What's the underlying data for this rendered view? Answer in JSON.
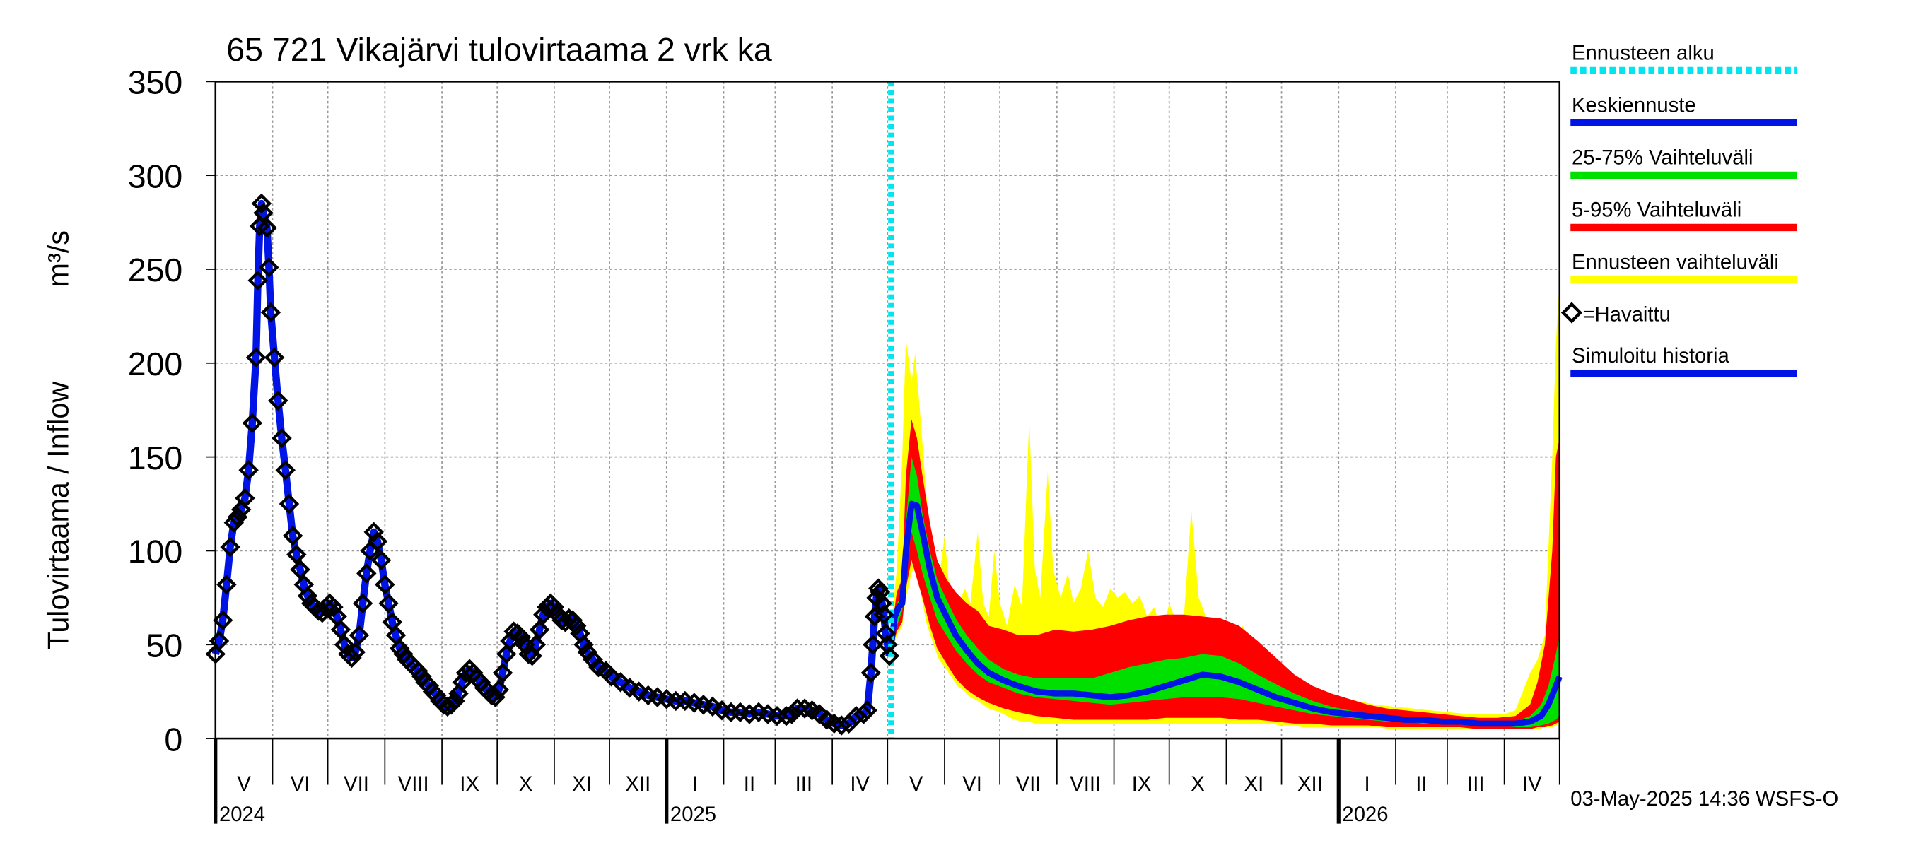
{
  "chart_data": {
    "type": "line",
    "title": "65 721 Vikajärvi tulovirtaama 2 vrk ka",
    "ylabel_main": "Tulovirtaama / Inflow",
    "ylabel_unit": "m³/s",
    "ylim": [
      0,
      350
    ],
    "yticks": [
      "0",
      "50",
      "100",
      "150",
      "200",
      "250",
      "300",
      "350"
    ],
    "ytick_values": [
      0,
      50,
      100,
      150,
      200,
      250,
      300,
      350
    ],
    "month_labels": [
      "V",
      "VI",
      "VII",
      "VIII",
      "IX",
      "X",
      "XI",
      "XII",
      "I",
      "II",
      "III",
      "IV",
      "V",
      "VI",
      "VII",
      "VIII",
      "IX",
      "X",
      "XI",
      "XII",
      "I",
      "II",
      "III",
      "IV"
    ],
    "year_labels": [
      "2024",
      "2025",
      "2026"
    ],
    "x_start_day": 0,
    "x_end_day": 730,
    "forecast_start_day": 367,
    "legend": [
      {
        "label": "Ennusteen alku",
        "color": "#00e5ee",
        "style": "dotted"
      },
      {
        "label": "Keskiennuste",
        "color": "#0014e6",
        "style": "solid"
      },
      {
        "label": "25-75% Vaihteluväli",
        "color": "#00e000",
        "style": "solid"
      },
      {
        "label": "5-95% Vaihteluväli",
        "color": "#ff0000",
        "style": "solid"
      },
      {
        "label": "Ennusteen vaihteluväli",
        "color": "#ffff00",
        "style": "solid"
      },
      {
        "label": "=Havaittu",
        "color": "#000000",
        "style": "marker"
      },
      {
        "label": "Simuloitu historia",
        "color": "#0014e6",
        "style": "solid"
      }
    ],
    "observed": [
      [
        0,
        45
      ],
      [
        2,
        52
      ],
      [
        4,
        63
      ],
      [
        6,
        82
      ],
      [
        8,
        102
      ],
      [
        10,
        115
      ],
      [
        12,
        118
      ],
      [
        14,
        122
      ],
      [
        16,
        128
      ],
      [
        18,
        143
      ],
      [
        20,
        168
      ],
      [
        22,
        203
      ],
      [
        23,
        244
      ],
      [
        24,
        273
      ],
      [
        25,
        285
      ],
      [
        26,
        280
      ],
      [
        28,
        272
      ],
      [
        29,
        251
      ],
      [
        30,
        227
      ],
      [
        32,
        203
      ],
      [
        34,
        180
      ],
      [
        36,
        160
      ],
      [
        38,
        143
      ],
      [
        40,
        125
      ],
      [
        42,
        108
      ],
      [
        44,
        98
      ],
      [
        46,
        90
      ],
      [
        48,
        82
      ],
      [
        50,
        76
      ],
      [
        52,
        72
      ],
      [
        54,
        70
      ],
      [
        56,
        68
      ],
      [
        58,
        67
      ],
      [
        60,
        70
      ],
      [
        62,
        72
      ],
      [
        64,
        70
      ],
      [
        66,
        65
      ],
      [
        68,
        58
      ],
      [
        70,
        50
      ],
      [
        72,
        45
      ],
      [
        74,
        43
      ],
      [
        76,
        46
      ],
      [
        78,
        55
      ],
      [
        80,
        72
      ],
      [
        82,
        88
      ],
      [
        84,
        100
      ],
      [
        86,
        110
      ],
      [
        88,
        105
      ],
      [
        90,
        95
      ],
      [
        92,
        82
      ],
      [
        94,
        72
      ],
      [
        96,
        62
      ],
      [
        98,
        55
      ],
      [
        100,
        48
      ],
      [
        102,
        45
      ],
      [
        104,
        42
      ],
      [
        106,
        40
      ],
      [
        108,
        38
      ],
      [
        110,
        36
      ],
      [
        112,
        33
      ],
      [
        114,
        30
      ],
      [
        116,
        28
      ],
      [
        118,
        25
      ],
      [
        120,
        23
      ],
      [
        122,
        20
      ],
      [
        124,
        18
      ],
      [
        126,
        17
      ],
      [
        128,
        18
      ],
      [
        130,
        20
      ],
      [
        132,
        24
      ],
      [
        134,
        30
      ],
      [
        136,
        35
      ],
      [
        138,
        37
      ],
      [
        140,
        35
      ],
      [
        142,
        32
      ],
      [
        144,
        30
      ],
      [
        146,
        27
      ],
      [
        148,
        25
      ],
      [
        150,
        23
      ],
      [
        152,
        22
      ],
      [
        154,
        26
      ],
      [
        156,
        35
      ],
      [
        158,
        45
      ],
      [
        160,
        52
      ],
      [
        162,
        57
      ],
      [
        164,
        56
      ],
      [
        166,
        54
      ],
      [
        168,
        50
      ],
      [
        170,
        45
      ],
      [
        172,
        44
      ],
      [
        174,
        50
      ],
      [
        176,
        58
      ],
      [
        178,
        66
      ],
      [
        180,
        70
      ],
      [
        182,
        72
      ],
      [
        184,
        70
      ],
      [
        186,
        66
      ],
      [
        188,
        63
      ],
      [
        190,
        62
      ],
      [
        192,
        64
      ],
      [
        194,
        63
      ],
      [
        196,
        60
      ],
      [
        198,
        56
      ],
      [
        200,
        50
      ],
      [
        202,
        46
      ],
      [
        205,
        42
      ],
      [
        208,
        38
      ],
      [
        212,
        36
      ],
      [
        215,
        33
      ],
      [
        220,
        30
      ],
      [
        225,
        27
      ],
      [
        230,
        25
      ],
      [
        235,
        23
      ],
      [
        240,
        22
      ],
      [
        245,
        21
      ],
      [
        250,
        20
      ],
      [
        255,
        20
      ],
      [
        260,
        19
      ],
      [
        265,
        18
      ],
      [
        270,
        17
      ],
      [
        275,
        15
      ],
      [
        280,
        14
      ],
      [
        285,
        14
      ],
      [
        290,
        13
      ],
      [
        295,
        14
      ],
      [
        300,
        13
      ],
      [
        305,
        12
      ],
      [
        310,
        12
      ],
      [
        313,
        13
      ],
      [
        316,
        16
      ],
      [
        320,
        16
      ],
      [
        324,
        15
      ],
      [
        328,
        13
      ],
      [
        332,
        10
      ],
      [
        336,
        8
      ],
      [
        340,
        7
      ],
      [
        344,
        8
      ],
      [
        348,
        12
      ],
      [
        352,
        13
      ],
      [
        354,
        15
      ],
      [
        356,
        35
      ],
      [
        357,
        50
      ],
      [
        358,
        65
      ],
      [
        359,
        75
      ],
      [
        360,
        80
      ],
      [
        361,
        78
      ],
      [
        362,
        72
      ],
      [
        363,
        66
      ],
      [
        364,
        56
      ],
      [
        365,
        50
      ],
      [
        366,
        44
      ]
    ],
    "forecast_median": [
      [
        367,
        50
      ],
      [
        369,
        65
      ],
      [
        371,
        70
      ],
      [
        373,
        72
      ],
      [
        375,
        100
      ],
      [
        378,
        125
      ],
      [
        381,
        124
      ],
      [
        384,
        110
      ],
      [
        388,
        90
      ],
      [
        392,
        75
      ],
      [
        397,
        65
      ],
      [
        402,
        55
      ],
      [
        408,
        47
      ],
      [
        414,
        40
      ],
      [
        420,
        35
      ],
      [
        428,
        31
      ],
      [
        436,
        28
      ],
      [
        446,
        25
      ],
      [
        456,
        24
      ],
      [
        466,
        24
      ],
      [
        476,
        23
      ],
      [
        486,
        22
      ],
      [
        496,
        23
      ],
      [
        506,
        25
      ],
      [
        516,
        28
      ],
      [
        526,
        31
      ],
      [
        536,
        34
      ],
      [
        546,
        33
      ],
      [
        556,
        30
      ],
      [
        566,
        26
      ],
      [
        576,
        22
      ],
      [
        586,
        19
      ],
      [
        596,
        16
      ],
      [
        606,
        14
      ],
      [
        616,
        13
      ],
      [
        626,
        12
      ],
      [
        636,
        11
      ],
      [
        646,
        10
      ],
      [
        656,
        10
      ],
      [
        666,
        9
      ],
      [
        676,
        9
      ],
      [
        686,
        8
      ],
      [
        696,
        8
      ],
      [
        706,
        8
      ],
      [
        714,
        9
      ],
      [
        720,
        12
      ],
      [
        724,
        18
      ],
      [
        728,
        28
      ],
      [
        730,
        33
      ]
    ],
    "band_p25_p75": [
      [
        367,
        48,
        52
      ],
      [
        370,
        60,
        72
      ],
      [
        373,
        68,
        76
      ],
      [
        375,
        90,
        115
      ],
      [
        378,
        110,
        150
      ],
      [
        381,
        100,
        140
      ],
      [
        384,
        88,
        120
      ],
      [
        388,
        75,
        100
      ],
      [
        392,
        63,
        85
      ],
      [
        397,
        55,
        74
      ],
      [
        402,
        47,
        64
      ],
      [
        408,
        40,
        55
      ],
      [
        414,
        34,
        48
      ],
      [
        420,
        30,
        42
      ],
      [
        428,
        27,
        37
      ],
      [
        436,
        24,
        34
      ],
      [
        446,
        22,
        32
      ],
      [
        456,
        21,
        32
      ],
      [
        466,
        20,
        32
      ],
      [
        476,
        19,
        32
      ],
      [
        486,
        18,
        35
      ],
      [
        496,
        19,
        38
      ],
      [
        506,
        20,
        40
      ],
      [
        516,
        21,
        42
      ],
      [
        526,
        22,
        43
      ],
      [
        536,
        22,
        45
      ],
      [
        546,
        22,
        44
      ],
      [
        556,
        21,
        40
      ],
      [
        566,
        19,
        34
      ],
      [
        576,
        17,
        29
      ],
      [
        586,
        15,
        24
      ],
      [
        596,
        13,
        20
      ],
      [
        606,
        12,
        17
      ],
      [
        616,
        11,
        15
      ],
      [
        626,
        10,
        13
      ],
      [
        636,
        9,
        12
      ],
      [
        646,
        9,
        11
      ],
      [
        656,
        8,
        11
      ],
      [
        666,
        8,
        10
      ],
      [
        676,
        8,
        10
      ],
      [
        686,
        7,
        9
      ],
      [
        696,
        7,
        9
      ],
      [
        706,
        6,
        9
      ],
      [
        714,
        6,
        12
      ],
      [
        720,
        7,
        18
      ],
      [
        724,
        8,
        28
      ],
      [
        728,
        10,
        45
      ],
      [
        730,
        12,
        55
      ]
    ],
    "band_p5_p95": [
      [
        367,
        46,
        55
      ],
      [
        370,
        57,
        78
      ],
      [
        373,
        62,
        85
      ],
      [
        375,
        80,
        140
      ],
      [
        378,
        95,
        170
      ],
      [
        381,
        85,
        160
      ],
      [
        384,
        75,
        140
      ],
      [
        388,
        60,
        115
      ],
      [
        392,
        48,
        95
      ],
      [
        397,
        40,
        85
      ],
      [
        402,
        32,
        78
      ],
      [
        408,
        26,
        72
      ],
      [
        414,
        22,
        68
      ],
      [
        420,
        19,
        60
      ],
      [
        428,
        16,
        58
      ],
      [
        436,
        14,
        55
      ],
      [
        446,
        12,
        55
      ],
      [
        456,
        11,
        58
      ],
      [
        466,
        10,
        57
      ],
      [
        476,
        10,
        58
      ],
      [
        486,
        10,
        60
      ],
      [
        496,
        10,
        63
      ],
      [
        506,
        10,
        65
      ],
      [
        516,
        11,
        66
      ],
      [
        526,
        11,
        66
      ],
      [
        536,
        11,
        65
      ],
      [
        546,
        11,
        64
      ],
      [
        556,
        10,
        60
      ],
      [
        566,
        10,
        52
      ],
      [
        576,
        9,
        43
      ],
      [
        586,
        8,
        34
      ],
      [
        596,
        8,
        28
      ],
      [
        606,
        7,
        24
      ],
      [
        616,
        7,
        21
      ],
      [
        626,
        7,
        18
      ],
      [
        636,
        6,
        16
      ],
      [
        646,
        6,
        15
      ],
      [
        656,
        6,
        14
      ],
      [
        666,
        6,
        13
      ],
      [
        676,
        6,
        12
      ],
      [
        686,
        5,
        11
      ],
      [
        696,
        5,
        11
      ],
      [
        706,
        5,
        12
      ],
      [
        714,
        5,
        18
      ],
      [
        718,
        6,
        30
      ],
      [
        722,
        6,
        50
      ],
      [
        726,
        7,
        100
      ],
      [
        728,
        8,
        150
      ],
      [
        730,
        9,
        160
      ]
    ],
    "band_min_max": [
      [
        367,
        44,
        60
      ],
      [
        370,
        55,
        90
      ],
      [
        373,
        60,
        150
      ],
      [
        375,
        75,
        213
      ],
      [
        378,
        88,
        190
      ],
      [
        380,
        92,
        205
      ],
      [
        383,
        78,
        170
      ],
      [
        386,
        62,
        130
      ],
      [
        390,
        50,
        95
      ],
      [
        393,
        42,
        85
      ],
      [
        396,
        38,
        108
      ],
      [
        399,
        34,
        75
      ],
      [
        403,
        28,
        70
      ],
      [
        407,
        25,
        80
      ],
      [
        410,
        22,
        72
      ],
      [
        414,
        20,
        110
      ],
      [
        417,
        18,
        72
      ],
      [
        420,
        16,
        65
      ],
      [
        423,
        15,
        100
      ],
      [
        426,
        14,
        72
      ],
      [
        430,
        12,
        60
      ],
      [
        434,
        10,
        82
      ],
      [
        438,
        9,
        70
      ],
      [
        442,
        9,
        170
      ],
      [
        445,
        8,
        90
      ],
      [
        448,
        8,
        75
      ],
      [
        452,
        8,
        142
      ],
      [
        455,
        8,
        90
      ],
      [
        459,
        8,
        75
      ],
      [
        463,
        8,
        88
      ],
      [
        466,
        8,
        72
      ],
      [
        470,
        8,
        80
      ],
      [
        474,
        8,
        100
      ],
      [
        478,
        8,
        75
      ],
      [
        482,
        8,
        70
      ],
      [
        486,
        8,
        80
      ],
      [
        490,
        8,
        75
      ],
      [
        494,
        8,
        78
      ],
      [
        498,
        8,
        72
      ],
      [
        502,
        8,
        76
      ],
      [
        506,
        8,
        65
      ],
      [
        510,
        8,
        70
      ],
      [
        514,
        8,
        55
      ],
      [
        518,
        8,
        72
      ],
      [
        522,
        8,
        62
      ],
      [
        526,
        8,
        65
      ],
      [
        530,
        8,
        122
      ],
      [
        534,
        8,
        75
      ],
      [
        538,
        8,
        65
      ],
      [
        542,
        8,
        60
      ],
      [
        546,
        8,
        58
      ],
      [
        550,
        8,
        62
      ],
      [
        554,
        8,
        55
      ],
      [
        558,
        8,
        60
      ],
      [
        562,
        8,
        52
      ],
      [
        566,
        8,
        50
      ],
      [
        570,
        8,
        45
      ],
      [
        574,
        8,
        40
      ],
      [
        578,
        7,
        37
      ],
      [
        582,
        7,
        33
      ],
      [
        586,
        7,
        30
      ],
      [
        590,
        6,
        28
      ],
      [
        594,
        6,
        26
      ],
      [
        600,
        6,
        24
      ],
      [
        610,
        6,
        22
      ],
      [
        620,
        6,
        20
      ],
      [
        630,
        6,
        18
      ],
      [
        640,
        5,
        17
      ],
      [
        650,
        5,
        16
      ],
      [
        660,
        5,
        15
      ],
      [
        670,
        5,
        14
      ],
      [
        680,
        5,
        13
      ],
      [
        690,
        5,
        13
      ],
      [
        700,
        5,
        13
      ],
      [
        706,
        5,
        15
      ],
      [
        710,
        5,
        25
      ],
      [
        714,
        5,
        35
      ],
      [
        718,
        5,
        42
      ],
      [
        722,
        6,
        55
      ],
      [
        726,
        6,
        150
      ],
      [
        728,
        7,
        210
      ],
      [
        730,
        8,
        245
      ]
    ],
    "annotation": "03-May-2025 14:36 WSFS-O"
  }
}
